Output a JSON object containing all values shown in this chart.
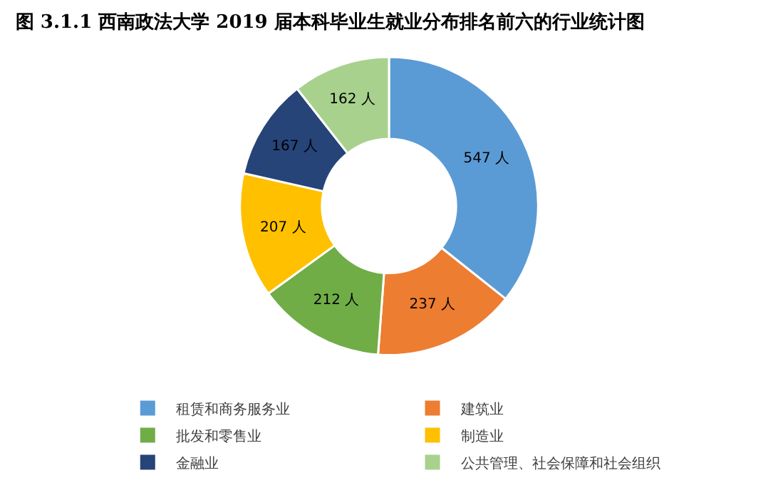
{
  "chart_data": {
    "type": "donut",
    "title": "图 3.1.1 西南政法大学 2019 届本科毕业生就业分布排名前六的行业统计图",
    "categories": [
      "租赁和商务服务业",
      "建筑业",
      "批发和零售业",
      "制造业",
      "金融业",
      "公共管理、社会保障和社会组织"
    ],
    "values": [
      547,
      237,
      212,
      207,
      167,
      162
    ],
    "value_labels": [
      "547 人",
      "237 人",
      "212 人",
      "207 人",
      "167 人",
      "162 人"
    ],
    "colors": [
      "#5b9bd5",
      "#ed7d31",
      "#70ad47",
      "#ffc000",
      "#264478",
      "#a9d18e"
    ],
    "legend": "bottom"
  }
}
